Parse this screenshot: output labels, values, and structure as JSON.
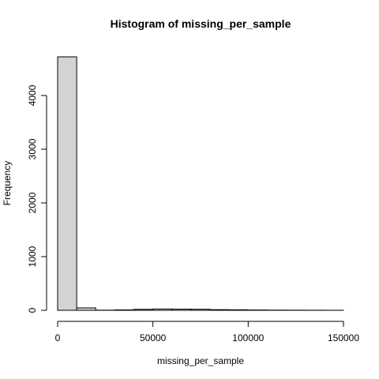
{
  "chart_data": {
    "type": "bar",
    "title": "Histogram of missing_per_sample",
    "xlabel": "missing_per_sample",
    "ylabel": "Frequency",
    "bins": [
      {
        "start": 0,
        "end": 10000,
        "count": 4720
      },
      {
        "start": 10000,
        "end": 20000,
        "count": 45
      },
      {
        "start": 20000,
        "end": 30000,
        "count": 3
      },
      {
        "start": 30000,
        "end": 40000,
        "count": 8
      },
      {
        "start": 40000,
        "end": 50000,
        "count": 18
      },
      {
        "start": 50000,
        "end": 60000,
        "count": 25
      },
      {
        "start": 60000,
        "end": 70000,
        "count": 22
      },
      {
        "start": 70000,
        "end": 80000,
        "count": 20
      },
      {
        "start": 80000,
        "end": 90000,
        "count": 12
      },
      {
        "start": 90000,
        "end": 100000,
        "count": 10
      },
      {
        "start": 100000,
        "end": 110000,
        "count": 6
      },
      {
        "start": 110000,
        "end": 120000,
        "count": 4
      },
      {
        "start": 120000,
        "end": 130000,
        "count": 3
      },
      {
        "start": 130000,
        "end": 140000,
        "count": 2
      },
      {
        "start": 140000,
        "end": 150000,
        "count": 1
      }
    ],
    "xlim": [
      0,
      150000
    ],
    "ylim": [
      0,
      4720
    ],
    "x_ticks": [
      0,
      50000,
      100000,
      150000
    ],
    "x_tick_labels": [
      "0",
      "50000",
      "100000",
      "150000"
    ],
    "y_ticks": [
      0,
      1000,
      2000,
      3000,
      4000
    ],
    "y_tick_labels": [
      "0",
      "1000",
      "2000",
      "3000",
      "4000"
    ],
    "bar_fill": "#d3d3d3",
    "grid": false,
    "legend": "none"
  }
}
